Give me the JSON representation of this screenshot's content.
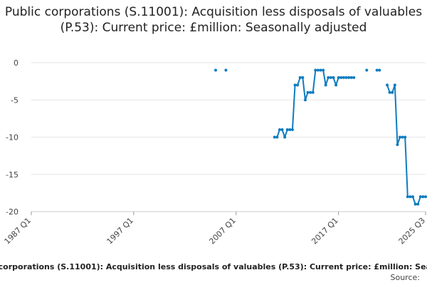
{
  "chart_data": {
    "type": "line",
    "title": "Public corporations (S.11001): Acquisition less disposals of valuables (P.53): Current price: £million: Seasonally adjusted",
    "x_start": "1987 Q1",
    "x_end": "2025 Q3",
    "x_tick_labels": [
      "1987 Q1",
      "1997 Q1",
      "2007 Q1",
      "2017 Q1",
      "2025 Q3"
    ],
    "y_tick_labels": [
      "0",
      "-5",
      "-10",
      "-15",
      "-20"
    ],
    "ylim": [
      -20,
      0
    ],
    "y_ticks": [
      0,
      -5,
      -10,
      -15,
      -20
    ],
    "grid": "horizontal",
    "color": "#0f7cbf",
    "series": [
      {
        "name": "Public corporations (S.11001): Acquisition less disposals of valuables (P.53): Current price: £million: Seasonally adjusted",
        "points": [
          [
            "2005 Q1",
            -1
          ],
          [
            "2006 Q1",
            -1
          ],
          [
            "2010 Q4",
            -10
          ],
          [
            "2011 Q1",
            -10
          ],
          [
            "2011 Q2",
            -9
          ],
          [
            "2011 Q3",
            -9
          ],
          [
            "2011 Q4",
            -10
          ],
          [
            "2012 Q1",
            -9
          ],
          [
            "2012 Q2",
            -9
          ],
          [
            "2012 Q3",
            -9
          ],
          [
            "2012 Q4",
            -3
          ],
          [
            "2013 Q1",
            -3
          ],
          [
            "2013 Q2",
            -2
          ],
          [
            "2013 Q3",
            -2
          ],
          [
            "2013 Q4",
            -5
          ],
          [
            "2014 Q1",
            -4
          ],
          [
            "2014 Q2",
            -4
          ],
          [
            "2014 Q3",
            -4
          ],
          [
            "2014 Q4",
            -1
          ],
          [
            "2015 Q1",
            -1
          ],
          [
            "2015 Q2",
            -1
          ],
          [
            "2015 Q3",
            -1
          ],
          [
            "2015 Q4",
            -3
          ],
          [
            "2016 Q1",
            -2
          ],
          [
            "2016 Q2",
            -2
          ],
          [
            "2016 Q3",
            -2
          ],
          [
            "2016 Q4",
            -3
          ],
          [
            "2017 Q1",
            -2
          ],
          [
            "2017 Q2",
            -2
          ],
          [
            "2017 Q3",
            -2
          ],
          [
            "2017 Q4",
            -2
          ],
          [
            "2018 Q1",
            -2
          ],
          [
            "2018 Q2",
            -2
          ],
          [
            "2018 Q3",
            -2
          ],
          [
            "2019 Q4",
            -1
          ],
          [
            "2020 Q4",
            -1
          ],
          [
            "2021 Q1",
            -1
          ],
          [
            "2021 Q4",
            -3
          ],
          [
            "2022 Q1",
            -4
          ],
          [
            "2022 Q2",
            -4
          ],
          [
            "2022 Q3",
            -3
          ],
          [
            "2022 Q4",
            -11
          ],
          [
            "2023 Q1",
            -10
          ],
          [
            "2023 Q2",
            -10
          ],
          [
            "2023 Q3",
            -10
          ],
          [
            "2023 Q4",
            -18
          ],
          [
            "2024 Q1",
            -18
          ],
          [
            "2024 Q2",
            -18
          ],
          [
            "2024 Q3",
            -19
          ],
          [
            "2024 Q4",
            -19
          ],
          [
            "2025 Q1",
            -18
          ],
          [
            "2025 Q2",
            -18
          ],
          [
            "2025 Q3",
            -18
          ]
        ]
      }
    ]
  },
  "source_label": "Source:"
}
